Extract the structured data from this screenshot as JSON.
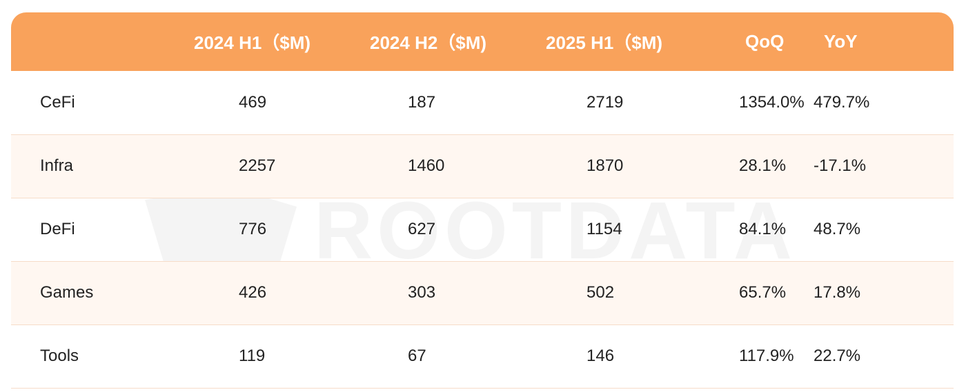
{
  "table": {
    "headers": [
      "",
      "2024 H1（$M)",
      "2024 H2（$M)",
      "2025 H1（$M)",
      "QoQ",
      "YoY"
    ],
    "rows": [
      {
        "category": "CeFi",
        "h1_2024": "469",
        "h2_2024": "187",
        "h1_2025": "2719",
        "qoq": "1354.0%",
        "yoy": "479.7%"
      },
      {
        "category": "Infra",
        "h1_2024": "2257",
        "h2_2024": "1460",
        "h1_2025": "1870",
        "qoq": "28.1%",
        "yoy": "-17.1%"
      },
      {
        "category": "DeFi",
        "h1_2024": "776",
        "h2_2024": "627",
        "h1_2025": "1154",
        "qoq": "84.1%",
        "yoy": "48.7%"
      },
      {
        "category": "Games",
        "h1_2024": "426",
        "h2_2024": "303",
        "h1_2025": "502",
        "qoq": "65.7%",
        "yoy": "17.8%"
      },
      {
        "category": "Tools",
        "h1_2024": "119",
        "h2_2024": "67",
        "h1_2025": "146",
        "qoq": "117.9%",
        "yoy": "22.7%"
      }
    ]
  },
  "watermark": {
    "text": "ROOTDATA"
  },
  "colors": {
    "header_bg": "#f9a25b",
    "stripe_bg": "#fff7f1",
    "row_border": "#f6dcc8"
  },
  "chart_data": {
    "type": "table",
    "columns": [
      "",
      "2024 H1（$M)",
      "2024 H2（$M)",
      "2025 H1（$M)",
      "QoQ",
      "YoY"
    ],
    "rows": [
      [
        "CeFi",
        469,
        187,
        2719,
        "1354.0%",
        "479.7%"
      ],
      [
        "Infra",
        2257,
        1460,
        1870,
        "28.1%",
        "-17.1%"
      ],
      [
        "DeFi",
        776,
        627,
        1154,
        "84.1%",
        "48.7%"
      ],
      [
        "Games",
        426,
        303,
        502,
        "65.7%",
        "17.8%"
      ],
      [
        "Tools",
        119,
        67,
        146,
        "117.9%",
        "22.7%"
      ]
    ]
  }
}
